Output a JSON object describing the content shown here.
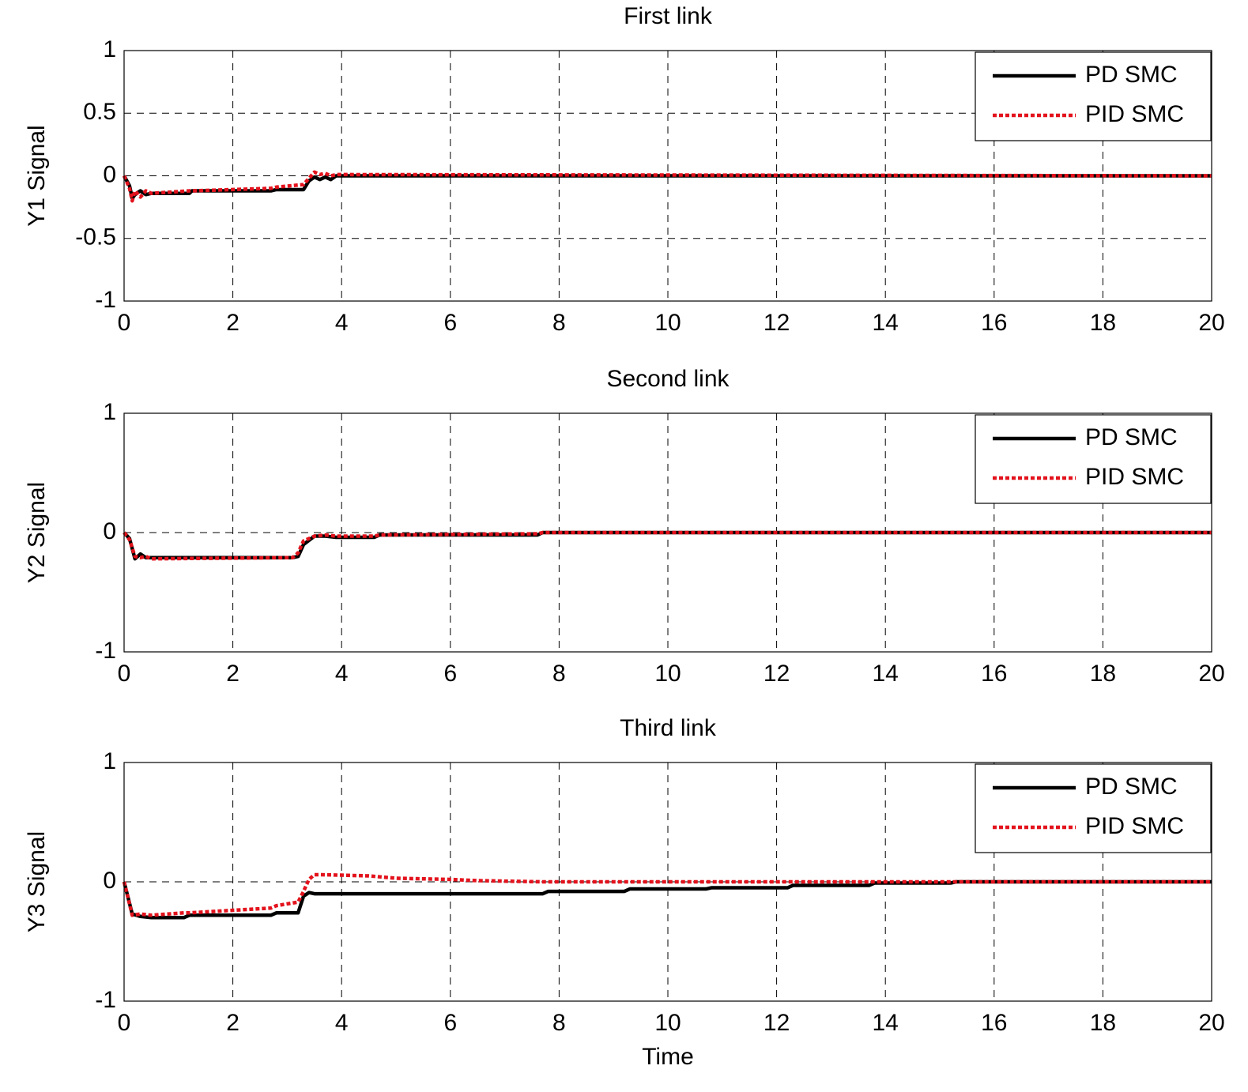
{
  "chart_data": [
    {
      "type": "line",
      "title": "First link",
      "y_label": "Y1 Signal",
      "x": [
        0,
        0.1,
        0.15,
        0.2,
        0.3,
        0.4,
        0.5,
        1.2,
        1.25,
        2.7,
        2.8,
        3.3,
        3.4,
        3.5,
        3.6,
        3.7,
        3.8,
        3.9,
        20
      ],
      "series": [
        {
          "name": "PD SMC",
          "color": "#000000",
          "style": "solid",
          "values": [
            0,
            -0.08,
            -0.18,
            -0.15,
            -0.12,
            -0.15,
            -0.14,
            -0.14,
            -0.12,
            -0.12,
            -0.11,
            -0.11,
            -0.04,
            -0.01,
            -0.03,
            -0.01,
            -0.03,
            0,
            0
          ]
        },
        {
          "name": "PID SMC",
          "color": "#e3121c",
          "style": "dotted",
          "values": [
            0,
            -0.1,
            -0.2,
            -0.12,
            -0.17,
            -0.12,
            -0.14,
            -0.12,
            -0.12,
            -0.1,
            -0.09,
            -0.07,
            -0.02,
            0.03,
            0.01,
            0.02,
            0.0,
            0.01,
            0
          ]
        }
      ],
      "xlim": [
        0,
        20
      ],
      "xticks": [
        0,
        2,
        4,
        6,
        8,
        10,
        12,
        14,
        16,
        18,
        20
      ],
      "ylim": [
        -1,
        1
      ],
      "yticks": [
        -1,
        -0.5,
        0,
        0.5,
        1
      ],
      "grid": true,
      "legend": "upper right"
    },
    {
      "type": "line",
      "title": "Second link",
      "y_label": "Y2 Signal",
      "x": [
        0,
        0.1,
        0.2,
        0.3,
        0.4,
        0.5,
        3.1,
        3.2,
        3.3,
        3.5,
        3.7,
        3.9,
        4.6,
        4.7,
        7.6,
        7.7,
        20
      ],
      "series": [
        {
          "name": "PD SMC",
          "color": "#000000",
          "style": "solid",
          "values": [
            0,
            -0.05,
            -0.22,
            -0.18,
            -0.21,
            -0.21,
            -0.21,
            -0.2,
            -0.1,
            -0.03,
            -0.03,
            -0.04,
            -0.04,
            -0.02,
            -0.02,
            0,
            0
          ]
        },
        {
          "name": "PID SMC",
          "color": "#e3121c",
          "style": "dotted",
          "values": [
            0,
            -0.06,
            -0.2,
            -0.21,
            -0.2,
            -0.22,
            -0.21,
            -0.17,
            -0.07,
            -0.03,
            -0.02,
            -0.03,
            -0.03,
            -0.02,
            -0.01,
            0,
            0
          ]
        }
      ],
      "xlim": [
        0,
        20
      ],
      "xticks": [
        0,
        2,
        4,
        6,
        8,
        10,
        12,
        14,
        16,
        18,
        20
      ],
      "ylim": [
        -1,
        1
      ],
      "yticks": [
        -1,
        0,
        1
      ],
      "grid": true,
      "legend": "upper right"
    },
    {
      "type": "line",
      "title": "Third link",
      "y_label": "Y3 Signal",
      "x_label": "Time",
      "x": [
        0,
        0.15,
        0.3,
        0.5,
        1.1,
        1.2,
        2.7,
        2.8,
        3.2,
        3.3,
        3.4,
        3.5,
        3.6,
        4.5,
        5,
        6,
        6.5,
        7.7,
        7.8,
        9.2,
        9.3,
        10.7,
        10.8,
        12.2,
        12.3,
        13.7,
        13.8,
        15.2,
        15.3,
        20
      ],
      "series": [
        {
          "name": "PD SMC",
          "color": "#000000",
          "style": "solid",
          "values": [
            0,
            -0.27,
            -0.29,
            -0.3,
            -0.3,
            -0.28,
            -0.28,
            -0.26,
            -0.26,
            -0.12,
            -0.09,
            -0.1,
            -0.1,
            -0.1,
            -0.1,
            -0.1,
            -0.1,
            -0.1,
            -0.08,
            -0.08,
            -0.06,
            -0.06,
            -0.05,
            -0.05,
            -0.03,
            -0.03,
            -0.01,
            -0.01,
            0,
            0
          ]
        },
        {
          "name": "PID SMC",
          "color": "#e3121c",
          "style": "dotted",
          "values": [
            0,
            -0.28,
            -0.27,
            -0.28,
            -0.26,
            -0.26,
            -0.22,
            -0.2,
            -0.17,
            -0.08,
            0.02,
            0.06,
            0.06,
            0.05,
            0.03,
            0.02,
            0.01,
            0.0,
            0,
            0,
            0,
            0,
            0,
            0,
            0,
            0,
            0,
            0,
            0,
            0
          ]
        }
      ],
      "xlim": [
        0,
        20
      ],
      "xticks": [
        0,
        2,
        4,
        6,
        8,
        10,
        12,
        14,
        16,
        18,
        20
      ],
      "ylim": [
        -1,
        1
      ],
      "yticks": [
        -1,
        0,
        1
      ],
      "grid": true,
      "legend": "upper right"
    }
  ]
}
